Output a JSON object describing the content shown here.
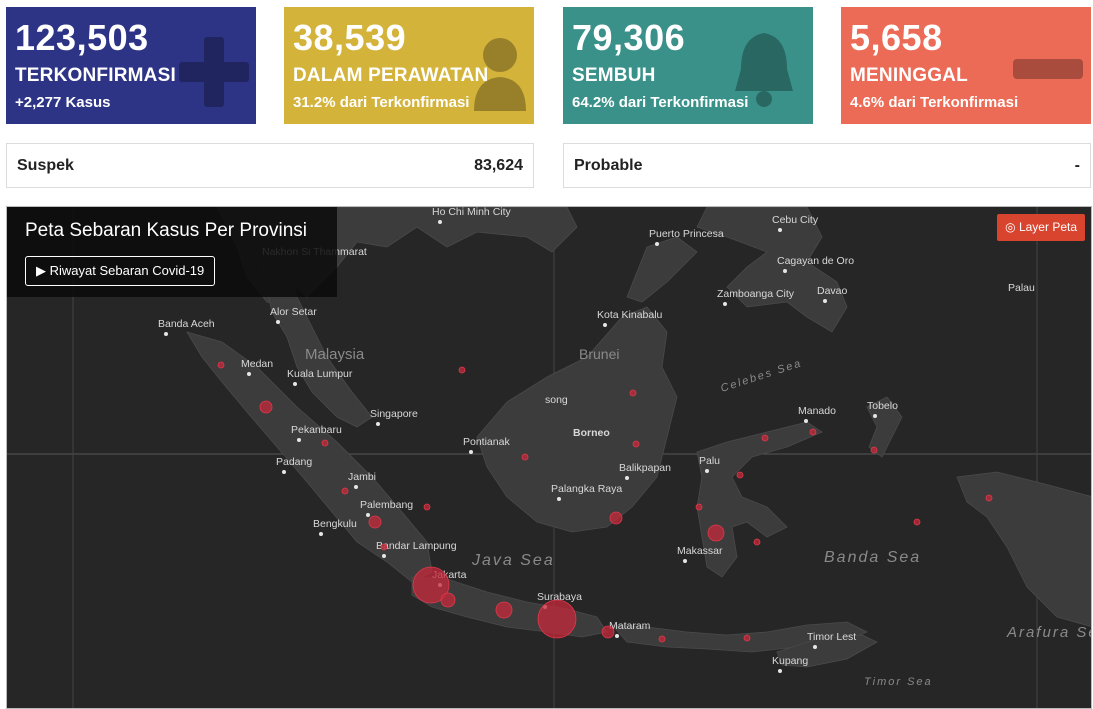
{
  "cards": [
    {
      "number": "123,503",
      "label": "TERKONFIRMASI",
      "sub": "+2,277 Kasus",
      "color": "#2d3486",
      "icon": "plus-icon"
    },
    {
      "number": "38,539",
      "label": "DALAM PERAWATAN",
      "sub": "31.2% dari Terkonfirmasi",
      "color": "#d4b33b",
      "icon": "patient-icon"
    },
    {
      "number": "79,306",
      "label": "SEMBUH",
      "sub": "64.2% dari Terkonfirmasi",
      "color": "#3a9189",
      "icon": "bell-icon"
    },
    {
      "number": "5,658",
      "label": "MENINGGAL",
      "sub": "4.6% dari Terkonfirmasi",
      "color": "#ec6b56",
      "icon": "minus-icon"
    }
  ],
  "info": [
    {
      "label": "Suspek",
      "value": "83,624"
    },
    {
      "label": "Probable",
      "value": "-"
    }
  ],
  "map": {
    "title": "Peta Sebaran Kasus Per Provinsi",
    "history_button": "▶ Riwayat Sebaran Covid-19",
    "layer_button": "◎ Layer Peta",
    "regions": [
      "Malaysia",
      "Brunei"
    ],
    "seas": [
      "Java Sea",
      "Banda Sea",
      "Arafura Sea",
      "Celebes Sea",
      "Timor Sea"
    ],
    "cities": [
      {
        "name": "Ho Chi Minh City"
      },
      {
        "name": "Nakhon Si Thammarat"
      },
      {
        "name": "Banda Aceh"
      },
      {
        "name": "Alor Setar"
      },
      {
        "name": "Medan"
      },
      {
        "name": "Kuala Lumpur"
      },
      {
        "name": "Singapore"
      },
      {
        "name": "Pekanbaru"
      },
      {
        "name": "Padang"
      },
      {
        "name": "Jambi"
      },
      {
        "name": "Palembang"
      },
      {
        "name": "Bengkulu"
      },
      {
        "name": "Bandar Lampung"
      },
      {
        "name": "Jakarta"
      },
      {
        "name": "Surabaya"
      },
      {
        "name": "Mataram"
      },
      {
        "name": "Pontianak"
      },
      {
        "name": "Palangka Raya"
      },
      {
        "name": "Borneo"
      },
      {
        "name": "Kota Kinabalu"
      },
      {
        "name": "Puerto Princesa"
      },
      {
        "name": "Cebu City"
      },
      {
        "name": "Cagayan de Oro"
      },
      {
        "name": "Zamboanga City"
      },
      {
        "name": "Davao"
      },
      {
        "name": "Palau"
      },
      {
        "name": "Balikpapan"
      },
      {
        "name": "Palu"
      },
      {
        "name": "Makassar"
      },
      {
        "name": "Manado"
      },
      {
        "name": "Tobelo"
      },
      {
        "name": "Kupang"
      },
      {
        "name": "Timor Lest"
      },
      {
        "name": "song"
      }
    ]
  }
}
